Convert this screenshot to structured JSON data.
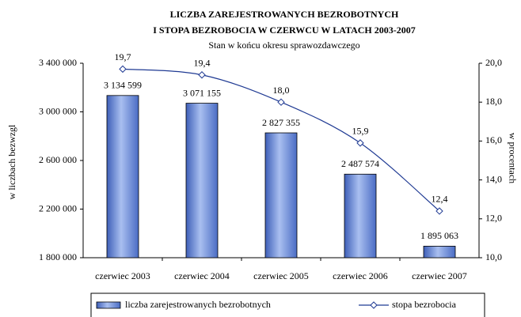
{
  "chart_data": {
    "type": "bar",
    "title": [
      "LICZBA ZAREJESTROWANYCH BEZROBOTNYCH",
      "I STOPA BEZROBOCIA W CZERWCU W LATACH 2003-2007"
    ],
    "subtitle": "Stan w końcu okresu sprawozdawczego",
    "ylabel": "w liczbach bezwzgl",
    "y2label": "w procentach",
    "categories": [
      "czerwiec 2003",
      "czerwiec 2004",
      "czerwiec 2005",
      "czerwiec 2006",
      "czerwiec 2007"
    ],
    "series": [
      {
        "name": "liczba zarejestrowanych bezrobotnych",
        "type": "bar",
        "color": "#7a96d8",
        "values": [
          3134599,
          3071155,
          2827355,
          2487574,
          1895063
        ],
        "value_labels": [
          "3 134 599",
          "3 071 155",
          "2 827 355",
          "2 487 574",
          "1 895 063"
        ]
      },
      {
        "name": "stopa bezrobocia",
        "type": "line",
        "axis": "y2",
        "color": "#1f3a93",
        "values": [
          19.7,
          19.4,
          18.0,
          15.9,
          12.4
        ],
        "value_labels": [
          "19,7",
          "19,4",
          "18,0",
          "15,9",
          "12,4"
        ]
      }
    ],
    "ylim": [
      1800000,
      3400000
    ],
    "yticks": [
      {
        "value": 1800000,
        "label": "1 800 000"
      },
      {
        "value": 2200000,
        "label": "2 200 000"
      },
      {
        "value": 2600000,
        "label": "2 600 000"
      },
      {
        "value": 3000000,
        "label": "3 000 000"
      },
      {
        "value": 3400000,
        "label": "3 400 000"
      }
    ],
    "y2lim": [
      10,
      20
    ],
    "y2ticks": [
      {
        "value": 10,
        "label": "10,0"
      },
      {
        "value": 12,
        "label": "12,0"
      },
      {
        "value": 14,
        "label": "14,0"
      },
      {
        "value": 16,
        "label": "16,0"
      },
      {
        "value": 18,
        "label": "18,0"
      },
      {
        "value": 20,
        "label": "20,0"
      }
    ],
    "legend": "bottom"
  }
}
